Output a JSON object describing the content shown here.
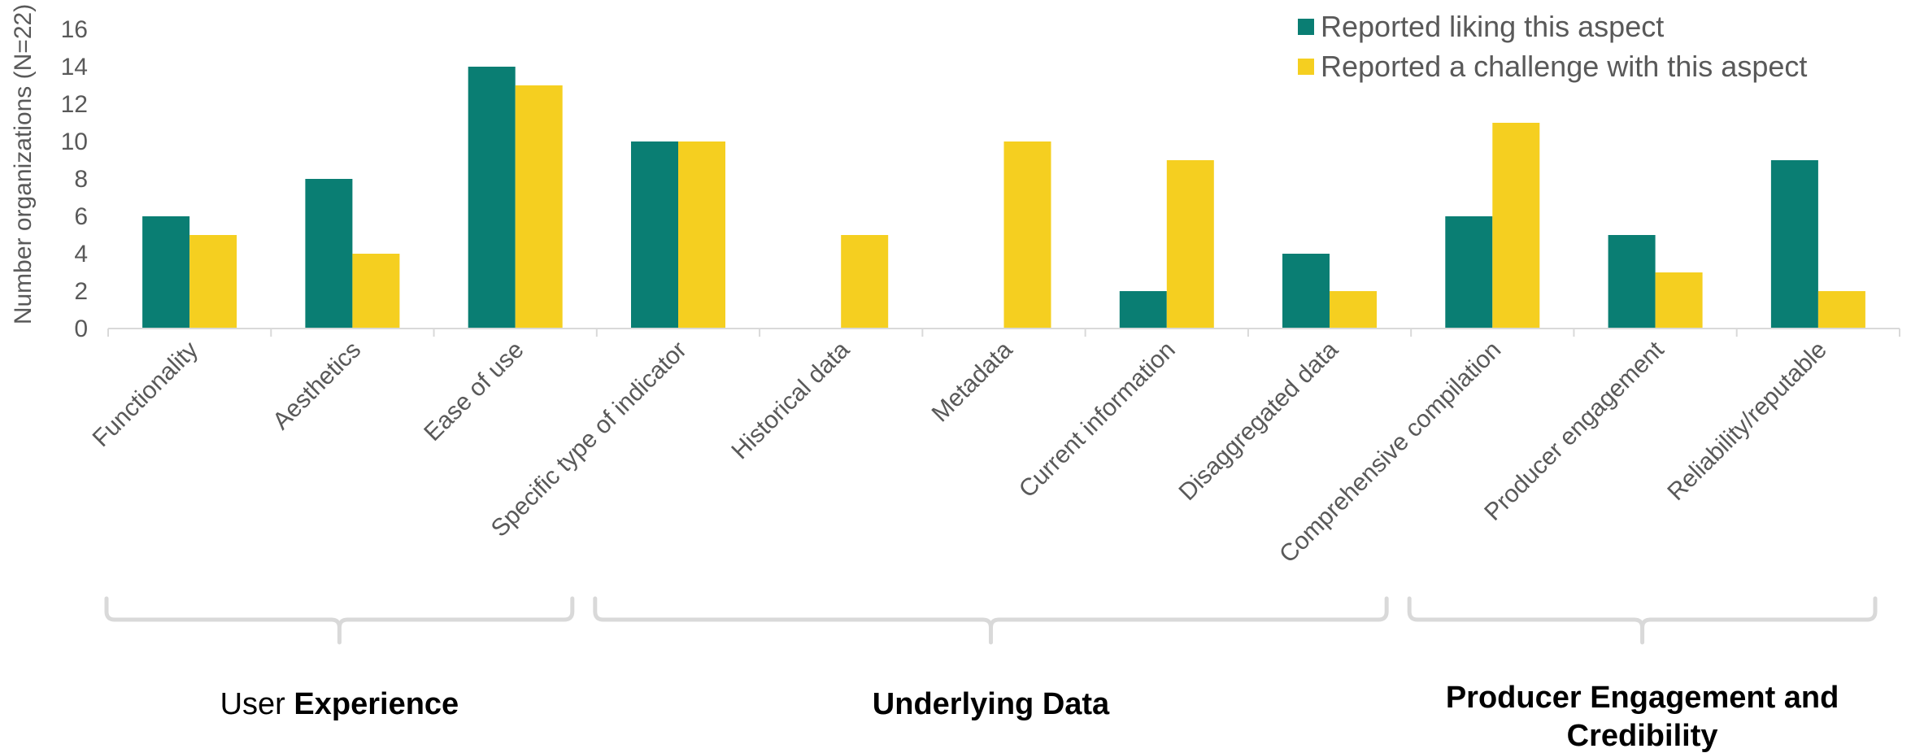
{
  "chart_data": {
    "type": "bar",
    "categories": [
      "Functionality",
      "Aesthetics",
      "Ease of use",
      "Specific type of indicator",
      "Historical data",
      "Metadata",
      "Current information",
      "Disaggregated data",
      "Comprehensive compilation",
      "Producer engagement",
      "Reliability/reputable"
    ],
    "series": [
      {
        "name": "Reported liking this aspect",
        "color": "#0a7e73",
        "values": [
          6,
          8,
          14,
          10,
          0,
          0,
          2,
          4,
          6,
          5,
          9
        ]
      },
      {
        "name": "Reported a challenge with this aspect",
        "color": "#f5cf20",
        "values": [
          5,
          4,
          13,
          10,
          5,
          10,
          9,
          2,
          11,
          3,
          2
        ]
      }
    ],
    "ylabel": "Number organizations (N=22)",
    "ylim": [
      0,
      16
    ],
    "yticks": [
      0,
      2,
      4,
      6,
      8,
      10,
      12,
      14,
      16
    ],
    "grid": false,
    "legend_position": "top-right",
    "groups": [
      {
        "parts": [
          {
            "text": "User ",
            "bold": false
          },
          {
            "text": "Experience",
            "bold": true
          }
        ],
        "first": 0,
        "last": 2
      },
      {
        "parts": [
          {
            "text": "Underlying Data",
            "bold": true
          }
        ],
        "first": 3,
        "last": 7
      },
      {
        "parts": [
          {
            "text": "Producer Engagement and",
            "bold": true
          },
          {
            "text": "Credibility",
            "bold": true
          }
        ],
        "multiline": true,
        "first": 8,
        "last": 10
      }
    ]
  }
}
